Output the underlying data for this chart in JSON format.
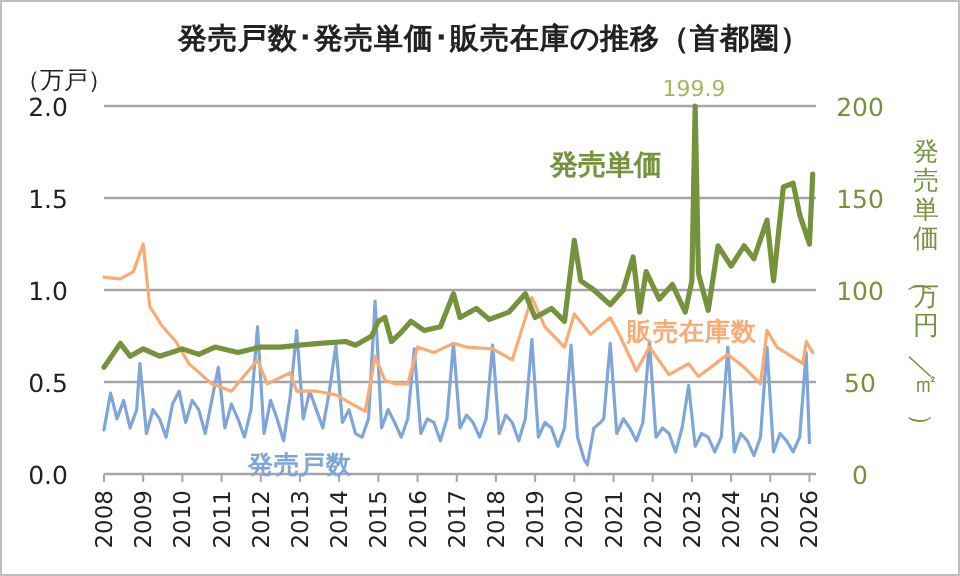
{
  "chart_data": {
    "type": "line",
    "title": "発売戸数･発売単価･販売在庫の推移（首都圏）",
    "ylabel": "（万戸）",
    "y2label": "発売単価（万円／㎡）",
    "xlim": [
      "2008-01",
      "2026-03"
    ],
    "xticks": [
      "2008",
      "2009",
      "2010",
      "2011",
      "2012",
      "2013",
      "2014",
      "2015",
      "2016",
      "2017",
      "2018",
      "2019",
      "2020",
      "2021",
      "2022",
      "2023",
      "2024",
      "2025",
      "2026"
    ],
    "ylim": [
      0,
      2
    ],
    "yticks": [
      {
        "value": 0,
        "label": "0.0"
      },
      {
        "value": 0.5,
        "label": "0.5"
      },
      {
        "value": 1,
        "label": "1.0"
      },
      {
        "value": 1.5,
        "label": "1.5"
      },
      {
        "value": 2,
        "label": "2.0"
      }
    ],
    "y2lim": [
      0,
      200
    ],
    "y2ticks": [
      0,
      50,
      100,
      150,
      200
    ],
    "grid": "y",
    "marker": "none",
    "line_style": "solid",
    "annotations": [
      "199.9"
    ],
    "series": [
      {
        "name": "発売戸数",
        "color": "#7fa6d6",
        "x": [
          "2008-01",
          "2008-03",
          "2008-05",
          "2008-07",
          "2008-09",
          "2008-11",
          "2008-12",
          "2009-02",
          "2009-04",
          "2009-06",
          "2009-08",
          "2009-10",
          "2009-12",
          "2010-02",
          "2010-04",
          "2010-06",
          "2010-08",
          "2010-10",
          "2010-12",
          "2011-02",
          "2011-04",
          "2011-06",
          "2011-08",
          "2011-10",
          "2011-12",
          "2012-02",
          "2012-04",
          "2012-06",
          "2012-08",
          "2012-10",
          "2012-12",
          "2013-02",
          "2013-04",
          "2013-06",
          "2013-08",
          "2013-10",
          "2013-12",
          "2014-02",
          "2014-04",
          "2014-06",
          "2014-08",
          "2014-10",
          "2014-12",
          "2015-02",
          "2015-04",
          "2015-06",
          "2015-08",
          "2015-10",
          "2015-12",
          "2016-02",
          "2016-04",
          "2016-06",
          "2016-08",
          "2016-10",
          "2016-12",
          "2017-02",
          "2017-04",
          "2017-06",
          "2017-08",
          "2017-10",
          "2017-12",
          "2018-02",
          "2018-04",
          "2018-06",
          "2018-08",
          "2018-10",
          "2018-12",
          "2019-02",
          "2019-04",
          "2019-06",
          "2019-08",
          "2019-10",
          "2019-12",
          "2020-02",
          "2020-04",
          "2020-05",
          "2020-07",
          "2020-09",
          "2020-10",
          "2020-12",
          "2021-02",
          "2021-04",
          "2021-06",
          "2021-08",
          "2021-10",
          "2021-12",
          "2022-02",
          "2022-04",
          "2022-06",
          "2022-08",
          "2022-10",
          "2022-12",
          "2023-02",
          "2023-04",
          "2023-06",
          "2023-08",
          "2023-10",
          "2023-12",
          "2024-02",
          "2024-04",
          "2024-06",
          "2024-08",
          "2024-10",
          "2024-12",
          "2025-02",
          "2025-04",
          "2025-06",
          "2025-08",
          "2025-10",
          "2025-12",
          "2026-01"
        ],
        "values": [
          0.24,
          0.44,
          0.3,
          0.4,
          0.25,
          0.35,
          0.6,
          0.22,
          0.35,
          0.3,
          0.2,
          0.38,
          0.45,
          0.28,
          0.4,
          0.35,
          0.22,
          0.4,
          0.58,
          0.25,
          0.38,
          0.3,
          0.2,
          0.35,
          0.8,
          0.22,
          0.4,
          0.3,
          0.18,
          0.42,
          0.78,
          0.3,
          0.45,
          0.35,
          0.25,
          0.45,
          0.7,
          0.28,
          0.35,
          0.22,
          0.2,
          0.3,
          0.94,
          0.25,
          0.35,
          0.28,
          0.2,
          0.3,
          0.68,
          0.22,
          0.3,
          0.28,
          0.18,
          0.3,
          0.71,
          0.25,
          0.32,
          0.28,
          0.2,
          0.3,
          0.7,
          0.22,
          0.32,
          0.28,
          0.18,
          0.3,
          0.73,
          0.2,
          0.28,
          0.25,
          0.15,
          0.25,
          0.7,
          0.2,
          0.08,
          0.05,
          0.25,
          0.28,
          0.3,
          0.71,
          0.22,
          0.3,
          0.25,
          0.18,
          0.28,
          0.72,
          0.2,
          0.25,
          0.22,
          0.12,
          0.25,
          0.48,
          0.15,
          0.22,
          0.2,
          0.12,
          0.2,
          0.69,
          0.12,
          0.22,
          0.18,
          0.1,
          0.2,
          0.69,
          0.12,
          0.22,
          0.18,
          0.12,
          0.2,
          0.66,
          0.17
        ]
      },
      {
        "name": "発売単価",
        "color": "#76923c",
        "axis": "y2",
        "x": [
          "2008-01",
          "2008-06",
          "2008-09",
          "2009-01",
          "2009-06",
          "2010-01",
          "2010-06",
          "2010-11",
          "2011-06",
          "2012-01",
          "2012-07",
          "2013-01",
          "2013-07",
          "2014-03",
          "2014-06",
          "2014-11",
          "2015-01",
          "2015-03",
          "2015-05",
          "2015-08",
          "2015-11",
          "2016-03",
          "2016-08",
          "2016-12",
          "2017-02",
          "2017-07",
          "2017-11",
          "2018-05",
          "2018-10",
          "2019-01",
          "2019-06",
          "2019-10",
          "2020-01",
          "2020-03",
          "2020-07",
          "2020-12",
          "2021-04",
          "2021-07",
          "2021-09",
          "2021-11",
          "2022-03",
          "2022-07",
          "2022-11",
          "2023-01",
          "2023-02",
          "2023-03",
          "2023-06",
          "2023-09",
          "2024-01",
          "2024-05",
          "2024-08",
          "2024-12",
          "2025-02",
          "2025-05",
          "2025-08",
          "2025-10",
          "2026-01",
          "2026-02"
        ],
        "values": [
          58,
          71,
          64,
          68,
          64,
          68,
          65,
          69,
          66,
          69,
          69,
          70,
          71,
          72,
          70,
          75,
          83,
          85,
          72,
          77,
          83,
          78,
          80,
          98,
          85,
          90,
          84,
          88,
          98,
          85,
          90,
          83,
          127,
          105,
          100,
          92,
          100,
          118,
          88,
          110,
          95,
          103,
          88,
          105,
          199.9,
          109,
          89,
          124,
          113,
          124,
          117,
          138,
          105,
          156,
          158,
          141,
          125,
          163
        ]
      },
      {
        "name": "販売在庫数",
        "color": "#f8ac74",
        "x": [
          "2008-01",
          "2008-06",
          "2008-10",
          "2009-01",
          "2009-03",
          "2009-07",
          "2009-11",
          "2010-03",
          "2010-10",
          "2011-04",
          "2011-12",
          "2012-03",
          "2012-10",
          "2012-12",
          "2013-06",
          "2013-12",
          "2014-05",
          "2014-09",
          "2014-12",
          "2015-03",
          "2015-06",
          "2015-10",
          "2016-01",
          "2016-06",
          "2016-12",
          "2017-04",
          "2017-12",
          "2018-06",
          "2018-12",
          "2019-04",
          "2019-10",
          "2020-01",
          "2020-06",
          "2020-12",
          "2021-03",
          "2021-08",
          "2021-12",
          "2022-06",
          "2022-12",
          "2023-03",
          "2023-12",
          "2024-05",
          "2024-10",
          "2024-12",
          "2025-03",
          "2025-11",
          "2025-12",
          "2026-02"
        ],
        "values": [
          1.07,
          1.06,
          1.1,
          1.25,
          0.91,
          0.8,
          0.72,
          0.6,
          0.49,
          0.45,
          0.62,
          0.49,
          0.55,
          0.45,
          0.45,
          0.43,
          0.38,
          0.34,
          0.64,
          0.51,
          0.49,
          0.49,
          0.69,
          0.66,
          0.71,
          0.69,
          0.68,
          0.62,
          0.96,
          0.8,
          0.69,
          0.87,
          0.76,
          0.85,
          0.75,
          0.56,
          0.69,
          0.54,
          0.6,
          0.53,
          0.65,
          0.58,
          0.49,
          0.78,
          0.69,
          0.6,
          0.72,
          0.66
        ]
      }
    ]
  }
}
